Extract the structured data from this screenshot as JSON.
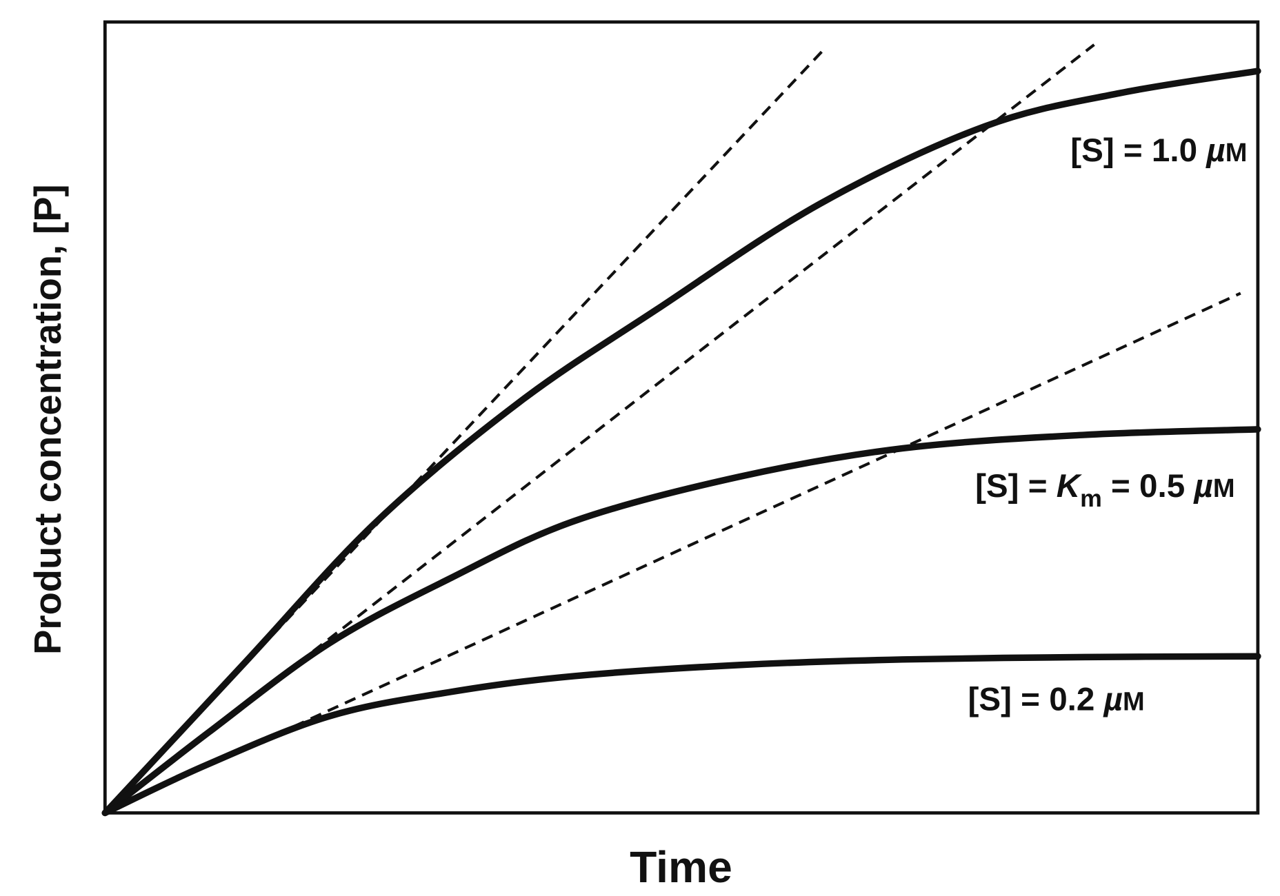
{
  "chart_data": {
    "type": "line",
    "title": "",
    "xlabel": "Time",
    "ylabel": "Product concentration, [P]",
    "xlim": [
      0,
      10
    ],
    "ylim": [
      0,
      10
    ],
    "grid": false,
    "ticks": false,
    "line_color": "#111111",
    "series": [
      {
        "name": "[S] = 1.0 µM",
        "label_parts": {
          "pre": "[S] = 1.0 ",
          "unit_mu": "µ",
          "unit": "M"
        },
        "points": [
          [
            0,
            0
          ],
          [
            1.2,
            1.88
          ],
          [
            2.36,
            3.69
          ],
          [
            3.6,
            5.2
          ],
          [
            4.78,
            6.36
          ],
          [
            6.2,
            7.7
          ],
          [
            7.63,
            8.68
          ],
          [
            8.8,
            9.1
          ],
          [
            10,
            9.38
          ]
        ],
        "tangent_slope": 1.548,
        "tangent_x_end": 6.24
      },
      {
        "name": "[S] = Km = 0.5 µM",
        "label_parts": {
          "pre": "[S] = ",
          "km": "K",
          "km_sub": "m",
          "post": " = 0.5 ",
          "unit_mu": "µ",
          "unit": "M"
        },
        "points": [
          [
            0,
            0
          ],
          [
            0.9,
            1.02
          ],
          [
            1.94,
            2.14
          ],
          [
            3.0,
            2.97
          ],
          [
            4.07,
            3.69
          ],
          [
            5.5,
            4.25
          ],
          [
            6.92,
            4.61
          ],
          [
            8.5,
            4.78
          ],
          [
            10,
            4.85
          ]
        ],
        "tangent_slope": 1.132,
        "tangent_x_end": 8.58
      },
      {
        "name": "[S] = 0.2 µM",
        "label_parts": {
          "pre": "[S] = 0.2 ",
          "unit_mu": "µ",
          "unit": "M"
        },
        "points": [
          [
            0,
            0
          ],
          [
            0.87,
            0.6
          ],
          [
            1.94,
            1.22
          ],
          [
            3.0,
            1.53
          ],
          [
            4.07,
            1.73
          ],
          [
            5.5,
            1.87
          ],
          [
            6.92,
            1.94
          ],
          [
            8.5,
            1.97
          ],
          [
            10,
            1.98
          ]
        ],
        "tangent_slope": 0.667,
        "tangent_x_end": 9.85
      }
    ]
  }
}
